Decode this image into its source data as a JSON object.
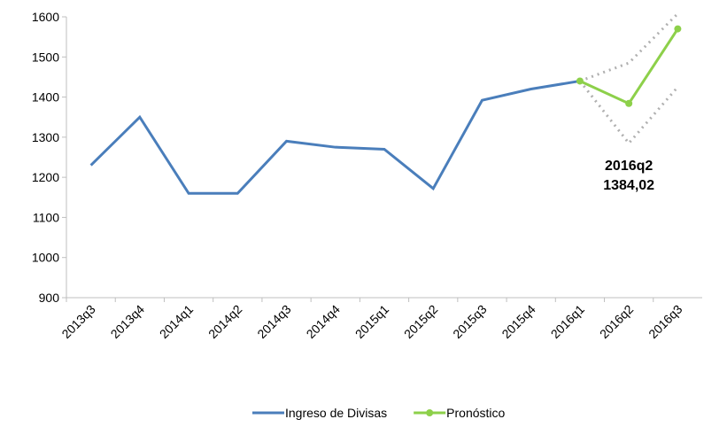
{
  "chart_data": {
    "type": "line",
    "categories": [
      "2013q3",
      "2013q4",
      "2014q1",
      "2014q2",
      "2014q3",
      "2014q4",
      "2015q1",
      "2015q2",
      "2015q3",
      "2015q4",
      "2016q1",
      "2016q2",
      "2016q3"
    ],
    "series": [
      {
        "name": "Ingreso de Divisas",
        "color": "#4a7ebb",
        "values": [
          1230,
          1350,
          1160,
          1160,
          1290,
          1275,
          1270,
          1172,
          1392,
          1420,
          1440,
          null,
          null
        ]
      },
      {
        "name": "Pronóstico",
        "color": "#8dd04a",
        "marker": true,
        "values": [
          null,
          null,
          null,
          null,
          null,
          null,
          null,
          null,
          null,
          null,
          1440,
          1384.02,
          1570
        ],
        "value_labels": [
          null,
          null,
          null,
          null,
          null,
          null,
          null,
          null,
          null,
          null,
          null,
          "1384,02",
          null
        ]
      }
    ],
    "bounds": {
      "color": "#b0b0b0",
      "upper": [
        null,
        null,
        null,
        null,
        null,
        null,
        null,
        null,
        null,
        null,
        1440,
        1485,
        1608
      ],
      "lower": [
        null,
        null,
        null,
        null,
        null,
        null,
        null,
        null,
        null,
        null,
        1440,
        1285,
        1425
      ]
    },
    "ylim": [
      900,
      1600
    ],
    "yticks": [
      900,
      1000,
      1100,
      1200,
      1300,
      1400,
      1500,
      1600
    ],
    "grid": false,
    "legend": "bottom"
  }
}
